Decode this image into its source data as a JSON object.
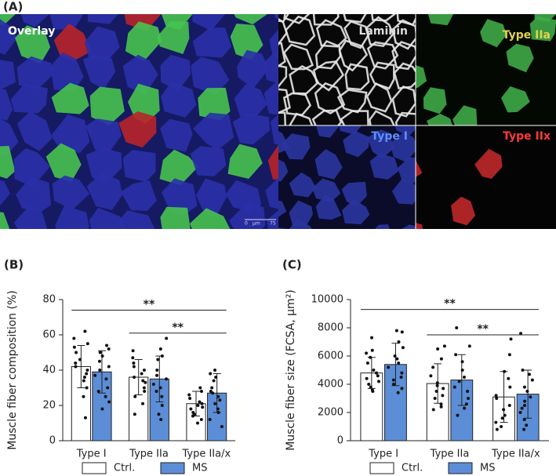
{
  "panel_a": {
    "label": "(A)",
    "overlay": "Overlay",
    "laminin": "Laminin",
    "type_iia": "Type IIa",
    "type_i": "Type I",
    "type_iix": "Type IIx",
    "scale_bar": [
      "0",
      "μm",
      "75"
    ]
  },
  "chart_data": [
    {
      "type": "bar",
      "panel_label": "(B)",
      "ylabel": "Muscle fiber composition (%)",
      "categories": [
        "Type I",
        "Type IIa",
        "Type IIa/x"
      ],
      "ylim": [
        0,
        80
      ],
      "yticks": [
        0,
        20,
        40,
        60,
        80
      ],
      "series": [
        {
          "name": "Ctrl.",
          "color": "#ffffff",
          "values": [
            42,
            36,
            21
          ],
          "errors": [
            12,
            10,
            7
          ],
          "points": [
            [
              62,
              58,
              55,
              53,
              50,
              46,
              44,
              42,
              40,
              38,
              36,
              34,
              30,
              25,
              13
            ],
            [
              51,
              47,
              44,
              42,
              40,
              38,
              36,
              34,
              33,
              30,
              28,
              25,
              21,
              15
            ],
            [
              30,
              28,
              26,
              24,
              22,
              21,
              20,
              19,
              18,
              16,
              15,
              14,
              12,
              10
            ]
          ]
        },
        {
          "name": "MS",
          "color": "#5b8ed6",
          "values": [
            39,
            35,
            27
          ],
          "errors": [
            12,
            13,
            11
          ],
          "points": [
            [
              54,
              52,
              50,
              48,
              45,
              42,
              40,
              37,
              35,
              30,
              28,
              25,
              22,
              18
            ],
            [
              58,
              52,
              48,
              46,
              40,
              37,
              35,
              32,
              30,
              28,
              25,
              20,
              15,
              12
            ],
            [
              40,
              38,
              36,
              34,
              30,
              28,
              27,
              25,
              23,
              21,
              18,
              16,
              12,
              8
            ]
          ]
        }
      ],
      "annotations": [
        {
          "label": "**",
          "y": 74
        },
        {
          "label": "**",
          "y": 61
        }
      ]
    },
    {
      "type": "bar",
      "panel_label": "(C)",
      "ylabel": "Muscle fiber size (FCSA, μm²)",
      "categories": [
        "Type I",
        "Type IIa",
        "Type IIa/x"
      ],
      "ylim": [
        0,
        10000
      ],
      "yticks": [
        0,
        2000,
        4000,
        6000,
        8000,
        10000
      ],
      "series": [
        {
          "name": "Ctrl.",
          "color": "#ffffff",
          "values": [
            4800,
            4050,
            3100
          ],
          "errors": [
            1100,
            1400,
            1800
          ],
          "points": [
            [
              7300,
              6400,
              6200,
              5900,
              5500,
              5000,
              4800,
              4600,
              4400,
              4200,
              4000,
              3800,
              3600,
              3500
            ],
            [
              6700,
              6500,
              5800,
              5200,
              4600,
              4100,
              3900,
              3700,
              3500,
              3200,
              3000,
              2600,
              2400,
              2200
            ],
            [
              7200,
              6100,
              4900,
              4400,
              3800,
              3200,
              3000,
              2500,
              2200,
              1800,
              1600,
              1300,
              1000,
              800
            ]
          ]
        },
        {
          "name": "MS",
          "color": "#5b8ed6",
          "values": [
            5400,
            4300,
            3300
          ],
          "errors": [
            1500,
            1800,
            1700
          ],
          "points": [
            [
              7800,
              7700,
              7000,
              6600,
              6000,
              5800,
              5500,
              5200,
              4800,
              4500,
              4300,
              4000,
              3700,
              3400
            ],
            [
              8000,
              6700,
              6100,
              5600,
              5000,
              4500,
              4200,
              3800,
              3500,
              3000,
              2600,
              2300,
              1800
            ],
            [
              7600,
              5000,
              4700,
              4300,
              3800,
              3500,
              3100,
              2800,
              2500,
              2300,
              2000,
              1500,
              1100,
              800
            ]
          ]
        }
      ],
      "annotations": [
        {
          "label": "**",
          "y": 9300
        },
        {
          "label": "**",
          "y": 7500
        }
      ]
    }
  ]
}
